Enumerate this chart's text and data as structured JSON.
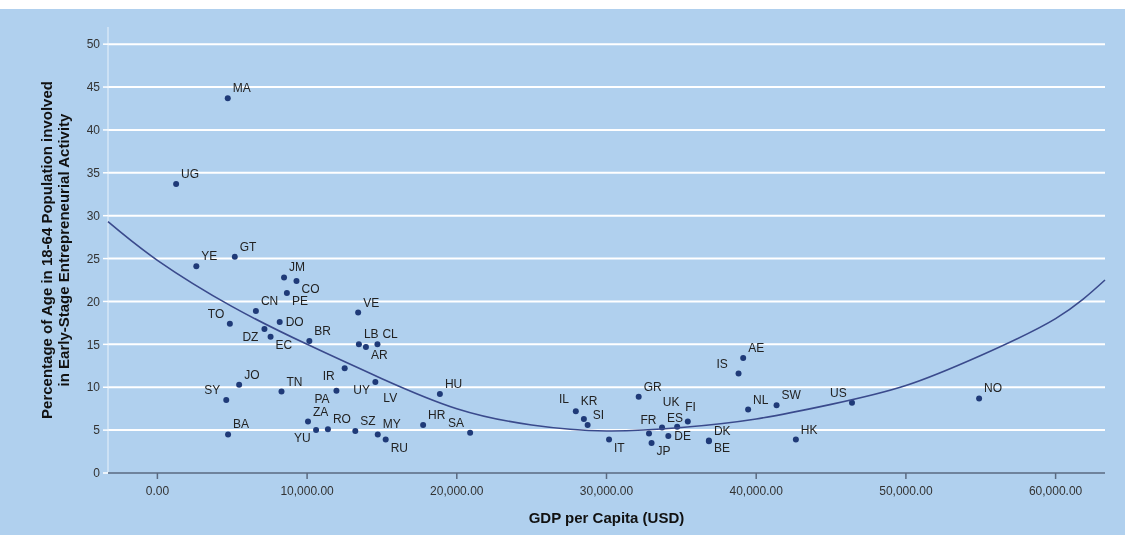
{
  "chart_data": {
    "type": "scatter",
    "xlabel": "GDP per Capita (USD)",
    "ylabel": "Percentage of Age in 18-64 Population involved\nin Early-Stage Entrepreneurial Activity",
    "xlim": [
      -3300,
      63300
    ],
    "ylim": [
      0,
      52
    ],
    "xticks": [
      {
        "value": 0,
        "label": "0.00"
      },
      {
        "value": 10000,
        "label": "10,000.00"
      },
      {
        "value": 20000,
        "label": "20,000.00"
      },
      {
        "value": 30000,
        "label": "30,000.00"
      },
      {
        "value": 40000,
        "label": "40,000.00"
      },
      {
        "value": 50000,
        "label": "50,000.00"
      },
      {
        "value": 60000,
        "label": "60,000.00"
      }
    ],
    "yticks": [
      0,
      5,
      10,
      15,
      20,
      25,
      30,
      35,
      40,
      45,
      50
    ],
    "grid": "y",
    "marker": "circle",
    "series": [
      {
        "color": "#1f3a78",
        "x": [
          4700,
          1250,
          5170,
          2600,
          8460,
          9290,
          8650,
          6580,
          4840,
          8170,
          7150,
          7560,
          10150,
          13410,
          13460,
          13930,
          14700,
          12510,
          14560,
          11960,
          5460,
          4600,
          8290,
          18870,
          4720,
          10060,
          10600,
          11390,
          13220,
          14720,
          15250,
          17750,
          20890,
          27950,
          28490,
          28740,
          30170,
          32840,
          33010,
          33710,
          34130,
          34720,
          35430,
          36840,
          36840,
          32150,
          38820,
          39130,
          39460,
          41360,
          42650,
          46400,
          54890
        ],
        "values": [
          43.7,
          33.7,
          25.2,
          24.1,
          22.8,
          22.4,
          21.0,
          18.9,
          17.4,
          17.6,
          16.8,
          15.9,
          15.4,
          18.7,
          15.0,
          14.7,
          15.0,
          12.2,
          10.6,
          9.6,
          10.3,
          8.5,
          9.5,
          9.2,
          4.5,
          6.0,
          5.0,
          5.1,
          4.9,
          4.5,
          3.9,
          5.6,
          4.7,
          7.2,
          6.3,
          5.6,
          3.9,
          4.6,
          3.5,
          5.3,
          4.3,
          5.4,
          6.0,
          3.8,
          3.7,
          8.9,
          11.6,
          13.4,
          7.4,
          7.9,
          3.9,
          8.2,
          8.7
        ]
      },
      {
        "type": "line",
        "color": "#3a4a8c",
        "marker": "none",
        "line_style": "solid",
        "x": [
          -3300,
          0,
          5000,
          10000,
          15000,
          20000,
          25000,
          30000,
          35000,
          40000,
          45000,
          50000,
          55000,
          60000,
          63300
        ],
        "values": [
          29.3,
          24.8,
          19.4,
          15.0,
          11.0,
          7.5,
          5.6,
          4.9,
          5.3,
          6.3,
          8.0,
          10.2,
          13.7,
          18.0,
          22.5
        ]
      }
    ],
    "annotations": [
      {
        "text": "MA",
        "x": 4700,
        "y": 43.7
      },
      {
        "text": "UG",
        "x": 1250,
        "y": 33.7
      },
      {
        "text": "GT",
        "x": 5170,
        "y": 25.2
      },
      {
        "text": "YE",
        "x": 2600,
        "y": 24.1
      },
      {
        "text": "JM",
        "x": 8460,
        "y": 22.8
      },
      {
        "text": "CO",
        "x": 9290,
        "y": 22.4
      },
      {
        "text": "PE",
        "x": 8650,
        "y": 21.0
      },
      {
        "text": "CN",
        "x": 6580,
        "y": 18.9
      },
      {
        "text": "TO",
        "x": 4840,
        "y": 17.4
      },
      {
        "text": "DO",
        "x": 8170,
        "y": 17.6
      },
      {
        "text": "DZ",
        "x": 7150,
        "y": 16.8
      },
      {
        "text": "EC",
        "x": 7560,
        "y": 15.9
      },
      {
        "text": "BR",
        "x": 10150,
        "y": 15.4
      },
      {
        "text": "VE",
        "x": 13410,
        "y": 18.7
      },
      {
        "text": "LB",
        "x": 13460,
        "y": 15.0
      },
      {
        "text": "AR",
        "x": 13930,
        "y": 14.7
      },
      {
        "text": "CL",
        "x": 14700,
        "y": 15.0
      },
      {
        "text": "IR",
        "x": 12510,
        "y": 12.2
      },
      {
        "text": "UY",
        "x": 14560,
        "y": 10.6
      },
      {
        "text": "LV",
        "x": 14560,
        "y": 10.6
      },
      {
        "text": "PA",
        "x": 11960,
        "y": 9.6
      },
      {
        "text": "JO",
        "x": 5460,
        "y": 10.3
      },
      {
        "text": "SY",
        "x": 4600,
        "y": 8.5
      },
      {
        "text": "TN",
        "x": 8290,
        "y": 9.5
      },
      {
        "text": "HU",
        "x": 18870,
        "y": 9.2
      },
      {
        "text": "BA",
        "x": 4720,
        "y": 4.5
      },
      {
        "text": "ZA",
        "x": 10060,
        "y": 6.0
      },
      {
        "text": "YU",
        "x": 10600,
        "y": 5.0
      },
      {
        "text": "RO",
        "x": 11390,
        "y": 5.1
      },
      {
        "text": "SZ",
        "x": 13220,
        "y": 4.9
      },
      {
        "text": "MY",
        "x": 14720,
        "y": 4.5
      },
      {
        "text": "RU",
        "x": 15250,
        "y": 3.9
      },
      {
        "text": "HR",
        "x": 17750,
        "y": 5.6
      },
      {
        "text": "SA",
        "x": 20890,
        "y": 4.7
      },
      {
        "text": "KR",
        "x": 27950,
        "y": 7.2
      },
      {
        "text": "IL",
        "x": 28490,
        "y": 6.3
      },
      {
        "text": "SI",
        "x": 28740,
        "y": 5.6
      },
      {
        "text": "IT",
        "x": 30170,
        "y": 3.9
      },
      {
        "text": "FR",
        "x": 32840,
        "y": 4.6
      },
      {
        "text": "JP",
        "x": 33010,
        "y": 3.5
      },
      {
        "text": "ES",
        "x": 33710,
        "y": 5.3
      },
      {
        "text": "DE",
        "x": 34130,
        "y": 4.3
      },
      {
        "text": "FI",
        "x": 34720,
        "y": 5.4
      },
      {
        "text": "UK",
        "x": 35430,
        "y": 6.0
      },
      {
        "text": "BE",
        "x": 36840,
        "y": 3.8
      },
      {
        "text": "DK",
        "x": 36840,
        "y": 3.7
      },
      {
        "text": "GR",
        "x": 32150,
        "y": 8.9
      },
      {
        "text": "IS",
        "x": 38820,
        "y": 11.6
      },
      {
        "text": "AE",
        "x": 39130,
        "y": 13.4
      },
      {
        "text": "NL",
        "x": 39460,
        "y": 7.4
      },
      {
        "text": "SW",
        "x": 41360,
        "y": 7.9
      },
      {
        "text": "HK",
        "x": 42650,
        "y": 3.9
      },
      {
        "text": "US",
        "x": 46400,
        "y": 8.2
      },
      {
        "text": "NO",
        "x": 54890,
        "y": 8.7
      }
    ]
  }
}
